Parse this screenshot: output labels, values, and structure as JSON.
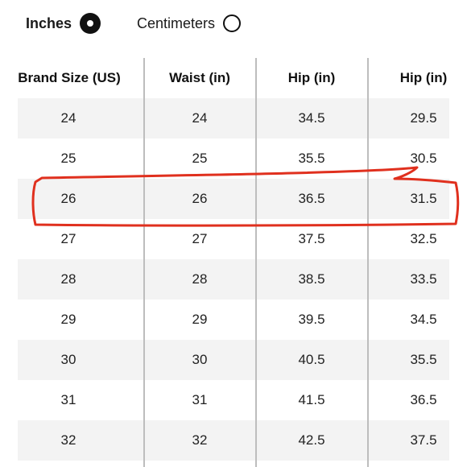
{
  "unit_toggle": {
    "options": [
      {
        "label": "Inches",
        "selected": true
      },
      {
        "label": "Centimeters",
        "selected": false
      }
    ]
  },
  "table": {
    "headers": [
      "Brand Size (US)",
      "Waist (in)",
      "Hip (in)",
      "Hip (in)"
    ],
    "rows": [
      [
        "24",
        "24",
        "34.5",
        "29.5"
      ],
      [
        "25",
        "25",
        "35.5",
        "30.5"
      ],
      [
        "26",
        "26",
        "36.5",
        "31.5"
      ],
      [
        "27",
        "27",
        "37.5",
        "32.5"
      ],
      [
        "28",
        "28",
        "38.5",
        "33.5"
      ],
      [
        "29",
        "29",
        "39.5",
        "34.5"
      ],
      [
        "30",
        "30",
        "40.5",
        "35.5"
      ],
      [
        "31",
        "31",
        "41.5",
        "36.5"
      ],
      [
        "32",
        "32",
        "42.5",
        "37.5"
      ]
    ]
  },
  "annotation": {
    "highlighted_row_index": 2,
    "color": "#e0301e"
  },
  "colors": {
    "shaded_row": "#f3f3f3",
    "divider": "#bdbdbd",
    "text": "#1a1a1a"
  }
}
